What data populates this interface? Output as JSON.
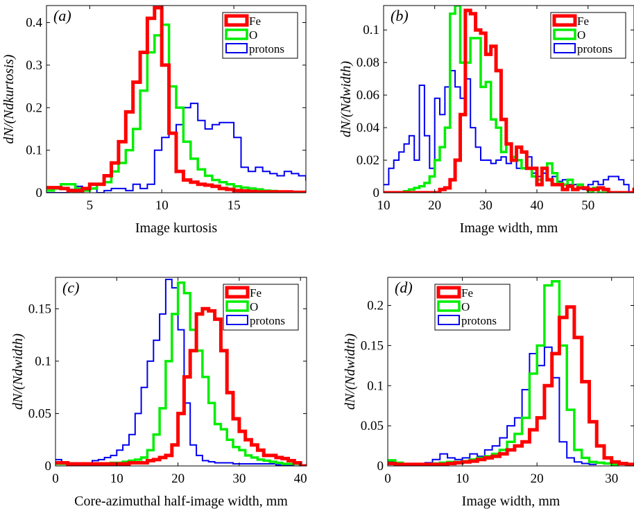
{
  "legend": {
    "fe": "Fe",
    "o": "O",
    "protons": "protons"
  },
  "colors": {
    "fe": "#ff0000",
    "o": "#00ee00",
    "protons": "#0000ee"
  },
  "chart_data": [
    {
      "type": "line",
      "panel_label": "(a)",
      "xlabel": "Image kurtosis",
      "ylabel": "dN/(Ndkurtosis)",
      "xlim": [
        2,
        20
      ],
      "ylim": [
        0,
        0.44
      ],
      "xticks": [
        5,
        10,
        15
      ],
      "yticks": [
        0,
        0.1,
        0.2,
        0.3,
        0.4
      ],
      "ytick_labels": [
        "0",
        "0.1",
        "0.2",
        "0.3",
        "0.4"
      ],
      "legend_position": "top-right",
      "step": 0.5,
      "series": [
        {
          "name": "Fe",
          "key": "fe",
          "x0": 2.0,
          "values": [
            0.012,
            0.012,
            0.01,
            0.005,
            0.005,
            0.01,
            0.02,
            0.02,
            0.04,
            0.07,
            0.12,
            0.19,
            0.26,
            0.33,
            0.41,
            0.435,
            0.3,
            0.14,
            0.05,
            0.03,
            0.025,
            0.02,
            0.018,
            0.015,
            0.01,
            0.008,
            0.005,
            0.004,
            0.003,
            0.002,
            0.002,
            0.002,
            0.002,
            0.002,
            0.001,
            0.001
          ]
        },
        {
          "name": "O",
          "key": "o",
          "x0": 2.0,
          "values": [
            0.005,
            0.01,
            0.02,
            0.02,
            0.01,
            0.005,
            0.01,
            0.02,
            0.025,
            0.05,
            0.07,
            0.1,
            0.15,
            0.24,
            0.33,
            0.37,
            0.395,
            0.25,
            0.2,
            0.12,
            0.08,
            0.055,
            0.04,
            0.03,
            0.025,
            0.02,
            0.015,
            0.012,
            0.01,
            0.008,
            0.005,
            0.004,
            0.003,
            0.002,
            0.002,
            0.001
          ]
        },
        {
          "name": "protons",
          "key": "protons",
          "x0": 2.0,
          "values": [
            0.0,
            0.0,
            0.0,
            0.008,
            0.015,
            0.01,
            0.01,
            0.0,
            0.005,
            0.01,
            0.01,
            0.005,
            0.02,
            0.01,
            0.02,
            0.1,
            0.13,
            0.14,
            0.16,
            0.2,
            0.21,
            0.17,
            0.15,
            0.16,
            0.165,
            0.165,
            0.13,
            0.06,
            0.05,
            0.06,
            0.05,
            0.045,
            0.04,
            0.05,
            0.045,
            0.04,
            0.03,
            0.03,
            0.025,
            0.015,
            0.025,
            0.01,
            0.015,
            0.01,
            0.02,
            0.01,
            0.015,
            0.01,
            0.02,
            0.01,
            0.015,
            0.01,
            0.01,
            0.015,
            0.01,
            0.008,
            0.005,
            0.008,
            0.005,
            0.008,
            0.0,
            0.005,
            0.0,
            0.002,
            0.0,
            0.005,
            0.005,
            0.01,
            0.005,
            0.005,
            0.01,
            0.005,
            0.0,
            0.005
          ]
        }
      ]
    },
    {
      "type": "line",
      "panel_label": "(b)",
      "xlabel": "Image width, mm",
      "ylabel": "dN/(Ndwidth)",
      "xlim": [
        10,
        59
      ],
      "ylim": [
        0,
        0.115
      ],
      "xticks": [
        10,
        20,
        30,
        40,
        50
      ],
      "yticks": [
        0,
        0.02,
        0.04,
        0.06,
        0.08,
        0.1
      ],
      "ytick_labels": [
        "0",
        "0.02",
        "0.04",
        "0.06",
        "0.08",
        "0.1"
      ],
      "legend_position": "top-right",
      "step": 1,
      "series": [
        {
          "name": "Fe",
          "key": "fe",
          "x0": 10,
          "values": [
            0,
            0,
            0,
            0,
            0,
            0,
            0,
            0,
            0,
            0,
            0,
            0.002,
            0.003,
            0.008,
            0.02,
            0.048,
            0.112,
            0.11,
            0.1,
            0.098,
            0.085,
            0.09,
            0.075,
            0.045,
            0.03,
            0.02,
            0.028,
            0.025,
            0.015,
            0.015,
            0.005,
            0.015,
            0.008,
            0.005,
            0.005,
            0.002,
            0.004,
            0.002,
            0.003,
            0.003,
            0.002,
            0.002,
            0.003,
            0.002,
            0.0,
            0.0,
            0.0,
            0.0,
            0.0,
            0.002,
            0.005,
            0.007
          ]
        },
        {
          "name": "O",
          "key": "o",
          "x0": 10,
          "values": [
            0,
            0,
            0,
            0,
            0.001,
            0.002,
            0.003,
            0.004,
            0.006,
            0.01,
            0.02,
            0.028,
            0.04,
            0.11,
            0.115,
            0.08,
            0.08,
            0.095,
            0.095,
            0.065,
            0.068,
            0.045,
            0.04,
            0.025,
            0.03,
            0.022,
            0.02,
            0.015,
            0.015,
            0.01,
            0.008,
            0.015,
            0.018,
            0.012,
            0.006,
            0.005,
            0.008,
            0.002,
            0.005,
            0.003,
            0.0,
            0.003,
            0.0,
            0.0,
            0.0,
            0.0,
            0.0
          ]
        },
        {
          "name": "protons",
          "key": "protons",
          "x0": 10,
          "values": [
            0.005,
            0.015,
            0.02,
            0.025,
            0.03,
            0.035,
            0.02,
            0.066,
            0.035,
            0.015,
            0.058,
            0.048,
            0.065,
            0.075,
            0.065,
            0.058,
            0.07,
            0.04,
            0.028,
            0.02,
            0.02,
            0.018,
            0.02,
            0.022,
            0.018,
            0.02,
            0.015,
            0.015,
            0.022,
            0.012,
            0.01,
            0.012,
            0.008,
            0.01,
            0.007,
            0.008,
            0.005,
            0.005,
            0.003,
            0.002,
            0.005,
            0.007,
            0.005,
            0.008,
            0.01,
            0.01,
            0.008,
            0.005,
            0.0
          ]
        }
      ]
    },
    {
      "type": "line",
      "panel_label": "(c)",
      "xlabel": "Core-azimuthal half-image width, mm",
      "ylabel": "dN/(Ndwidth)",
      "xlim": [
        0,
        41
      ],
      "ylim": [
        0,
        0.18
      ],
      "xticks": [
        0,
        10,
        20,
        30,
        40
      ],
      "yticks": [
        0,
        0.05,
        0.1,
        0.15
      ],
      "ytick_labels": [
        "0",
        "0.05",
        "0.1",
        "0.15"
      ],
      "legend_position": "top-right",
      "step": 1,
      "series": [
        {
          "name": "Fe",
          "key": "fe",
          "x0": 0,
          "values": [
            0.003,
            0.003,
            0.002,
            0.002,
            0.002,
            0.002,
            0.002,
            0.002,
            0.002,
            0.002,
            0.002,
            0.002,
            0.003,
            0.003,
            0.003,
            0.005,
            0.006,
            0.008,
            0.01,
            0.02,
            0.05,
            0.085,
            0.11,
            0.145,
            0.15,
            0.148,
            0.14,
            0.11,
            0.07,
            0.045,
            0.033,
            0.025,
            0.02,
            0.015,
            0.01,
            0.01,
            0.008,
            0.007,
            0.005,
            0.003,
            0.0
          ]
        },
        {
          "name": "O",
          "key": "o",
          "x0": 0,
          "values": [
            0.002,
            0.002,
            0.002,
            0.002,
            0.002,
            0.002,
            0.002,
            0.002,
            0.002,
            0.003,
            0.003,
            0.004,
            0.005,
            0.006,
            0.008,
            0.015,
            0.03,
            0.055,
            0.1,
            0.145,
            0.175,
            0.165,
            0.13,
            0.11,
            0.085,
            0.06,
            0.04,
            0.035,
            0.025,
            0.018,
            0.015,
            0.01,
            0.008,
            0.006,
            0.005,
            0.004,
            0.003,
            0.002,
            0.002,
            0.002
          ]
        },
        {
          "name": "protons",
          "key": "protons",
          "x0": 0,
          "values": [
            0.006,
            0.004,
            0.002,
            0.002,
            0.002,
            0.002,
            0.005,
            0.006,
            0.008,
            0.01,
            0.015,
            0.02,
            0.03,
            0.05,
            0.075,
            0.1,
            0.12,
            0.145,
            0.178,
            0.17,
            0.13,
            0.06,
            0.02,
            0.01,
            0.005,
            0.004,
            0.003,
            0.003,
            0.003,
            0.002,
            0.002,
            0.002,
            0.002,
            0.002,
            0.002,
            0.002,
            0.001,
            0.001,
            0.001
          ]
        }
      ]
    },
    {
      "type": "line",
      "panel_label": "(d)",
      "xlabel": "Image width, mm",
      "ylabel": "dN/(Ndwidth)",
      "xlim": [
        0,
        33
      ],
      "ylim": [
        0,
        0.235
      ],
      "xticks": [
        0,
        10,
        20,
        30
      ],
      "yticks": [
        0,
        0.05,
        0.1,
        0.15,
        0.2
      ],
      "ytick_labels": [
        "0",
        "0.05",
        "0.1",
        "0.15",
        "0.2"
      ],
      "legend_position": "top-left",
      "step": 1,
      "series": [
        {
          "name": "Fe",
          "key": "fe",
          "x0": 0,
          "values": [
            0.003,
            0.002,
            0.002,
            0.002,
            0.002,
            0.002,
            0.002,
            0.002,
            0.003,
            0.004,
            0.005,
            0.006,
            0.008,
            0.01,
            0.012,
            0.015,
            0.02,
            0.025,
            0.03,
            0.045,
            0.06,
            0.1,
            0.14,
            0.185,
            0.198,
            0.16,
            0.105,
            0.055,
            0.025,
            0.01,
            0.005,
            0.003,
            0.002
          ]
        },
        {
          "name": "O",
          "key": "o",
          "x0": 0,
          "values": [
            0.007,
            0.004,
            0.002,
            0.002,
            0.002,
            0.002,
            0.003,
            0.004,
            0.005,
            0.005,
            0.006,
            0.008,
            0.01,
            0.012,
            0.015,
            0.02,
            0.03,
            0.04,
            0.06,
            0.115,
            0.15,
            0.225,
            0.23,
            0.15,
            0.07,
            0.02,
            0.01,
            0.005,
            0.004,
            0.003,
            0.002
          ]
        },
        {
          "name": "protons",
          "key": "protons",
          "x0": 0,
          "values": [
            0.005,
            0.004,
            0.002,
            0.002,
            0.003,
            0.004,
            0.008,
            0.015,
            0.01,
            0.008,
            0.01,
            0.015,
            0.012,
            0.02,
            0.025,
            0.035,
            0.05,
            0.06,
            0.095,
            0.14,
            0.125,
            0.148,
            0.11,
            0.03,
            0.01,
            0.005,
            0.003,
            0.002
          ]
        }
      ]
    }
  ]
}
